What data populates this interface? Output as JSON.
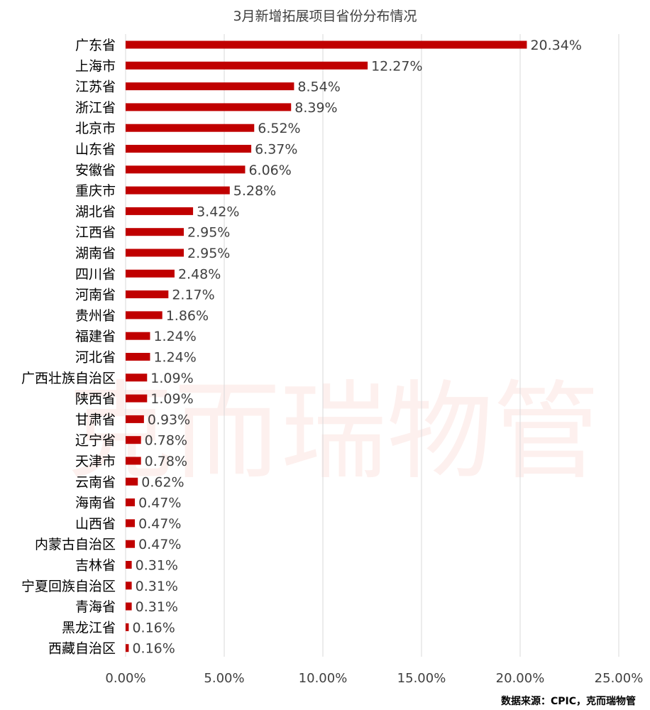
{
  "chart_data": {
    "type": "bar",
    "orientation": "horizontal",
    "title": "3月新增拓展项目省份分布情况",
    "categories": [
      "广东省",
      "上海市",
      "江苏省",
      "浙江省",
      "北京市",
      "山东省",
      "安徽省",
      "重庆市",
      "湖北省",
      "江西省",
      "湖南省",
      "四川省",
      "河南省",
      "贵州省",
      "福建省",
      "河北省",
      "广西壮族自治区",
      "陕西省",
      "甘肃省",
      "辽宁省",
      "天津市",
      "云南省",
      "海南省",
      "山西省",
      "内蒙古自治区",
      "吉林省",
      "宁夏回族自治区",
      "青海省",
      "黑龙江省",
      "西藏自治区"
    ],
    "values": [
      20.34,
      12.27,
      8.54,
      8.39,
      6.52,
      6.37,
      6.06,
      5.28,
      3.42,
      2.95,
      2.95,
      2.48,
      2.17,
      1.86,
      1.24,
      1.24,
      1.09,
      1.09,
      0.93,
      0.78,
      0.78,
      0.62,
      0.47,
      0.47,
      0.47,
      0.31,
      0.31,
      0.31,
      0.16,
      0.16
    ],
    "value_labels": [
      "20.34%",
      "12.27%",
      "8.54%",
      "8.39%",
      "6.52%",
      "6.37%",
      "6.06%",
      "5.28%",
      "3.42%",
      "2.95%",
      "2.95%",
      "2.48%",
      "2.17%",
      "1.86%",
      "1.24%",
      "1.24%",
      "1.09%",
      "1.09%",
      "0.93%",
      "0.78%",
      "0.78%",
      "0.62%",
      "0.47%",
      "0.47%",
      "0.47%",
      "0.31%",
      "0.31%",
      "0.31%",
      "0.16%",
      "0.16%"
    ],
    "xlim": [
      0,
      25
    ],
    "xticks": [
      0,
      5,
      10,
      15,
      20,
      25
    ],
    "xtick_labels": [
      "0.00%",
      "5.00%",
      "10.00%",
      "15.00%",
      "20.00%",
      "25.00%"
    ],
    "grid": true,
    "legend": "none",
    "bar_color": "#c00000"
  },
  "source": "数据来源：CPIC，克而瑞物管",
  "watermark": "克而瑞物管"
}
